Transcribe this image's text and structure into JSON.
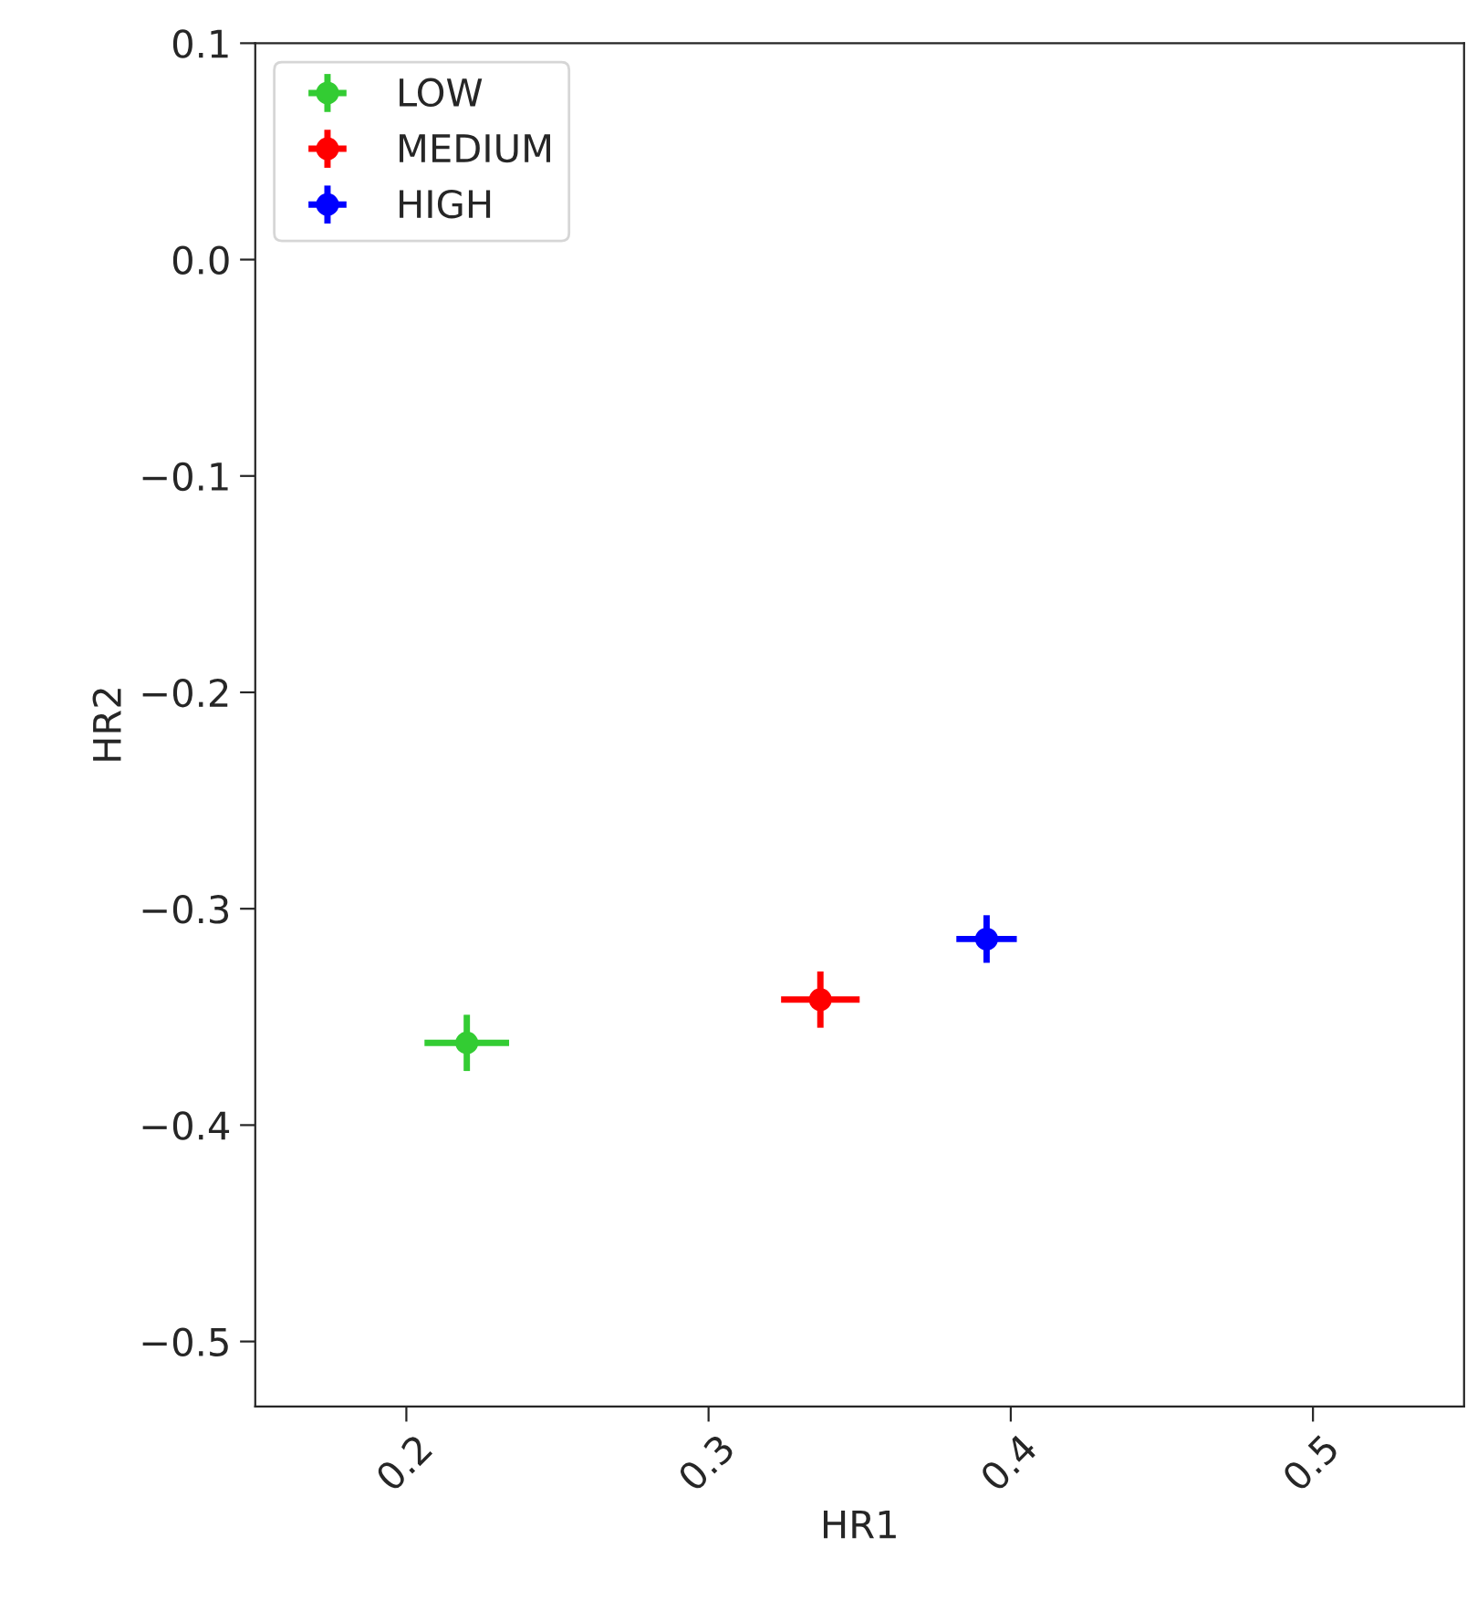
{
  "chart_data": {
    "type": "scatter",
    "xlabel": "HR1",
    "ylabel": "HR2",
    "xlim": [
      0.15,
      0.55
    ],
    "ylim": [
      -0.53,
      0.1
    ],
    "xticks": [
      0.2,
      0.3,
      0.4,
      0.5
    ],
    "yticks": [
      0.1,
      {
        "value": 0.0,
        "label": "0.0"
      },
      -0.1,
      -0.2,
      -0.3,
      -0.4,
      -0.5
    ],
    "marker": "circle",
    "legend": "top left",
    "grid": false,
    "series": [
      {
        "name": "LOW",
        "color": "#33cc33",
        "x": [
          0.22
        ],
        "values": [
          -0.362
        ],
        "errors": [
          0.013
        ],
        "xerrors": [
          0.014
        ]
      },
      {
        "name": "MEDIUM",
        "color": "#ff0000",
        "x": [
          0.337
        ],
        "values": [
          -0.342
        ],
        "errors": [
          0.013
        ],
        "xerrors": [
          0.013
        ]
      },
      {
        "name": "HIGH",
        "color": "#0000ff",
        "x": [
          0.392
        ],
        "values": [
          -0.314
        ],
        "errors": [
          0.011
        ],
        "xerrors": [
          0.01
        ]
      }
    ]
  }
}
